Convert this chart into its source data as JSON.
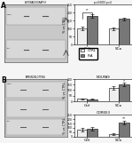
{
  "panel_A_title": "AUTORADIOGRAPHY",
  "panel_B_title": "IMMUNOBLOTTING",
  "bar_chart_A": {
    "title": "p<0.0001 p=4",
    "groups": [
      "Ctrl",
      "SCa"
    ],
    "ctrl_values": [
      100,
      100
    ],
    "pta_values": [
      180,
      160
    ],
    "ctrl_err": [
      12,
      8
    ],
    "pta_err": [
      10,
      10
    ],
    "ylabel": "% vs CTRL",
    "ylim": [
      0,
      250
    ],
    "yticks": [
      0,
      50,
      100,
      150,
      200,
      250
    ]
  },
  "bar_chart_B1": {
    "title": "NDUFA9",
    "groups": [
      "Ctrl",
      "SCa"
    ],
    "ctrl_values": [
      20,
      120
    ],
    "pta_values": [
      18,
      150
    ],
    "ctrl_err": [
      6,
      18
    ],
    "pta_err": [
      4,
      15
    ],
    "ylabel": "% vs CTRL",
    "ylim": [
      0,
      200
    ],
    "yticks": [
      0,
      50,
      100,
      150,
      200
    ]
  },
  "bar_chart_B2": {
    "title": "COREE3",
    "groups": [
      "Ctrl",
      "SCa"
    ],
    "ctrl_values": [
      75,
      25
    ],
    "pta_values": [
      85,
      160
    ],
    "ctrl_err": [
      20,
      10
    ],
    "pta_err": [
      18,
      22
    ],
    "ylabel": "% vs CTRL",
    "ylim": [
      0,
      250
    ],
    "yticks": [
      0,
      50,
      100,
      150,
      200,
      250
    ]
  },
  "ctrl_color": "#eeeeee",
  "pta_color": "#777777",
  "ctrl_label": "CTRL",
  "pta_label": "PtA",
  "bar_width": 0.32,
  "bg_color": "#f5f5f5",
  "panel_label_A": "A",
  "panel_label_B": "B",
  "anno_star_A": "**",
  "anno_star_B1": "*",
  "anno_star_B2": "**",
  "blot_A_bg": "#c8c8c8",
  "blot_B_bg": "#c8c8c8",
  "blot_inner_bg": "#d8d8d8"
}
